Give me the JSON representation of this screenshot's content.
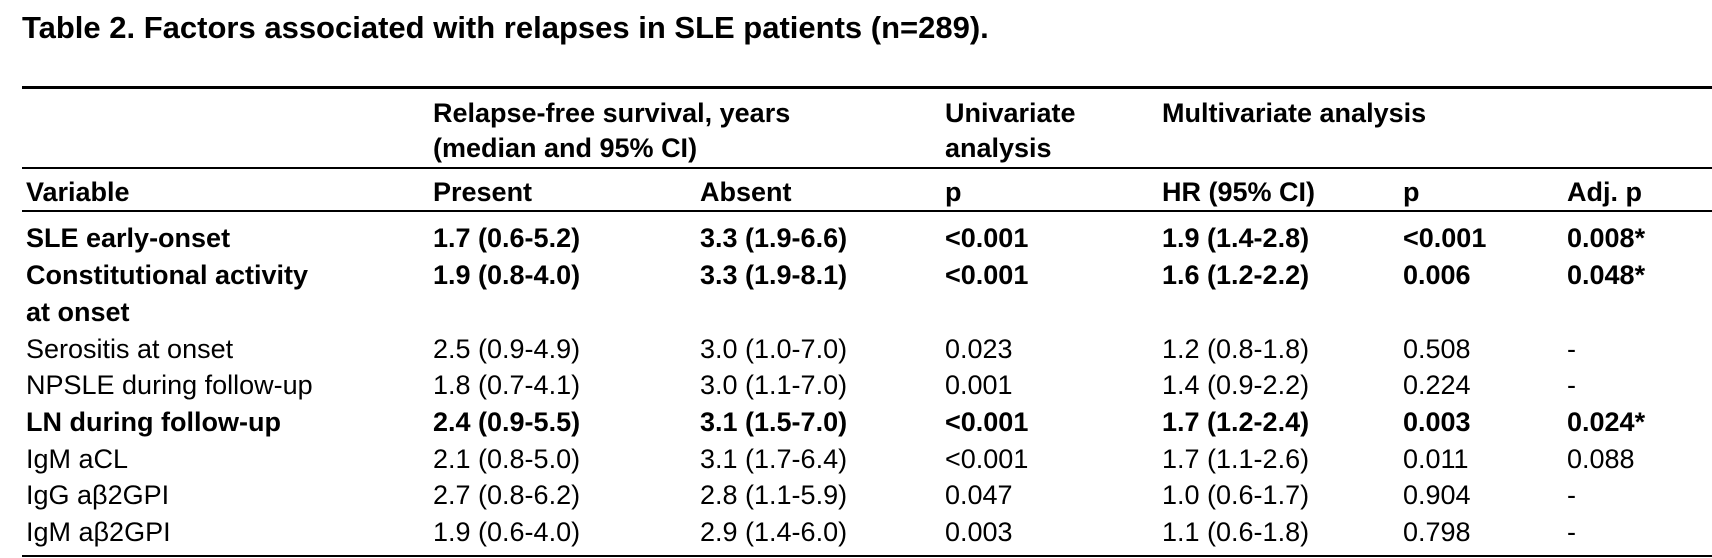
{
  "title": "Table 2. Factors associated with relapses in SLE patients (n=289).",
  "group_headers": {
    "relapse_line1": "Relapse-free survival, years",
    "relapse_line2": "(median and 95% CI)",
    "univariate_line1": "Univariate",
    "univariate_line2": "analysis",
    "multivariate": "Multivariate analysis"
  },
  "columns": [
    "Variable",
    "Present",
    "Absent",
    "p",
    "HR (95% CI)",
    "p",
    "Adj. p"
  ],
  "rows": [
    {
      "variable": "SLE early-onset",
      "variable_line2": "",
      "present": "1.7 (0.6-5.2)",
      "absent": "3.3 (1.9-6.6)",
      "p_uni": "<0.001",
      "hr": "1.9 (1.4-2.8)",
      "p_multi": "<0.001",
      "adj_p": "0.008*",
      "bold": true
    },
    {
      "variable": "Constitutional activity",
      "variable_line2": "at onset",
      "present": "1.9 (0.8-4.0)",
      "absent": "3.3 (1.9-8.1)",
      "p_uni": "<0.001",
      "hr": "1.6 (1.2-2.2)",
      "p_multi": "0.006",
      "adj_p": "0.048*",
      "bold": true
    },
    {
      "variable": "Serositis at onset",
      "variable_line2": "",
      "present": "2.5 (0.9-4.9)",
      "absent": "3.0 (1.0-7.0)",
      "p_uni": "0.023",
      "hr": "1.2 (0.8-1.8)",
      "p_multi": "0.508",
      "adj_p": "-",
      "bold": false
    },
    {
      "variable": "NPSLE during follow-up",
      "variable_line2": "",
      "present": "1.8 (0.7-4.1)",
      "absent": "3.0 (1.1-7.0)",
      "p_uni": "0.001",
      "hr": "1.4 (0.9-2.2)",
      "p_multi": "0.224",
      "adj_p": "-",
      "bold": false
    },
    {
      "variable": "LN during follow-up",
      "variable_line2": "",
      "present": "2.4 (0.9-5.5)",
      "absent": "3.1 (1.5-7.0)",
      "p_uni": "<0.001",
      "hr": "1.7 (1.2-2.4)",
      "p_multi": "0.003",
      "adj_p": "0.024*",
      "bold": true
    },
    {
      "variable": "IgM aCL",
      "variable_line2": "",
      "present": "2.1 (0.8-5.0)",
      "absent": "3.1 (1.7-6.4)",
      "p_uni": "<0.001",
      "hr": "1.7 (1.1-2.6)",
      "p_multi": "0.011",
      "adj_p": "0.088",
      "bold": false
    },
    {
      "variable": "IgG aβ2GPI",
      "variable_line2": "",
      "present": "2.7 (0.8-6.2)",
      "absent": "2.8 (1.1-5.9)",
      "p_uni": "0.047",
      "hr": "1.0 (0.6-1.7)",
      "p_multi": "0.904",
      "adj_p": "-",
      "bold": false
    },
    {
      "variable": "IgM aβ2GPI",
      "variable_line2": "",
      "present": "1.9 (0.6-4.0)",
      "absent": "2.9 (1.4-6.0)",
      "p_uni": "0.003",
      "hr": "1.1 (0.6-1.8)",
      "p_multi": "0.798",
      "adj_p": "-",
      "bold": false
    }
  ]
}
